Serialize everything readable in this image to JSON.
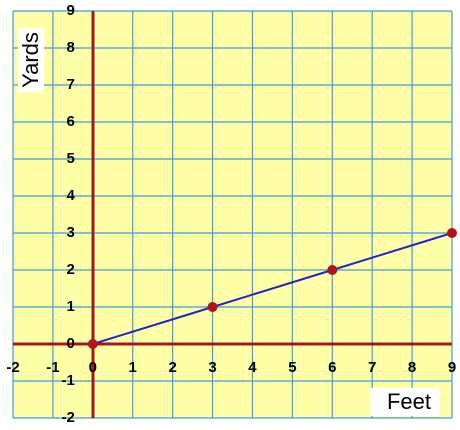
{
  "chart_data": {
    "type": "line",
    "x_label": "Feet",
    "y_label": "Yards",
    "x": [
      0,
      3,
      6,
      9
    ],
    "series": [
      {
        "color": "#2424c8",
        "marker_color": "#b01418",
        "values": [
          0,
          1,
          2,
          3
        ]
      }
    ],
    "xlim": [
      -2,
      9
    ],
    "ylim": [
      -2,
      9
    ],
    "xticks": [
      -2,
      -1,
      0,
      1,
      2,
      3,
      4,
      5,
      6,
      7,
      8,
      9
    ],
    "yticks": [
      -2,
      -1,
      0,
      1,
      2,
      3,
      4,
      5,
      6,
      7,
      8,
      9
    ],
    "grid": true
  }
}
